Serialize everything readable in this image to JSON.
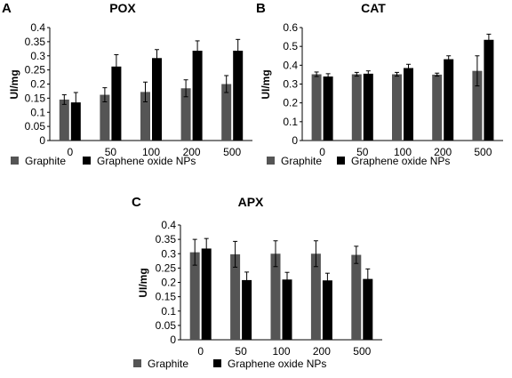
{
  "figure": {
    "colors": {
      "graphite": "#555555",
      "graphene": "#000000",
      "axis": "#000000"
    }
  },
  "chart_data": [
    {
      "panel": "A",
      "type": "bar",
      "title": "POX",
      "ylabel": "UI/mg",
      "xlabel": "",
      "categories": [
        "0",
        "50",
        "100",
        "200",
        "500"
      ],
      "ylim": [
        0,
        0.4
      ],
      "yticks": [
        "0",
        "0.05",
        "0.1",
        "0.15",
        "0.2",
        "0.25",
        "0.3",
        "0.35",
        "0.4"
      ],
      "grid": false,
      "legend_position": "bottom",
      "series": [
        {
          "name": "Graphite",
          "values": [
            0.145,
            0.162,
            0.172,
            0.185,
            0.2
          ],
          "errors": [
            0.017,
            0.025,
            0.035,
            0.03,
            0.03
          ]
        },
        {
          "name": "Graphene oxide NPs",
          "values": [
            0.135,
            0.262,
            0.292,
            0.318,
            0.318
          ],
          "errors": [
            0.035,
            0.042,
            0.03,
            0.035,
            0.04
          ]
        }
      ]
    },
    {
      "panel": "B",
      "type": "bar",
      "title": "CAT",
      "ylabel": "UI/mg",
      "xlabel": "",
      "categories": [
        "0",
        "50",
        "100",
        "200",
        "500"
      ],
      "ylim": [
        0,
        0.6
      ],
      "yticks": [
        "0",
        "0.1",
        "0.2",
        "0.3",
        "0.4",
        "0.5",
        "0.6"
      ],
      "grid": false,
      "legend_position": "bottom",
      "series": [
        {
          "name": "Graphite",
          "values": [
            0.352,
            0.352,
            0.352,
            0.35,
            0.37
          ],
          "errors": [
            0.012,
            0.01,
            0.01,
            0.008,
            0.08
          ]
        },
        {
          "name": "Graphene oxide NPs",
          "values": [
            0.34,
            0.355,
            0.385,
            0.432,
            0.535
          ],
          "errors": [
            0.015,
            0.015,
            0.02,
            0.018,
            0.03
          ]
        }
      ]
    },
    {
      "panel": "C",
      "type": "bar",
      "title": "APX",
      "ylabel": "UI/mg",
      "xlabel": "",
      "categories": [
        "0",
        "50",
        "100",
        "200",
        "500"
      ],
      "ylim": [
        0,
        0.4
      ],
      "yticks": [
        "0",
        "0.05",
        "0.1",
        "0.15",
        "0.2",
        "0.25",
        "0.3",
        "0.35",
        "0.4"
      ],
      "grid": false,
      "legend_position": "bottom",
      "series": [
        {
          "name": "Graphite",
          "values": [
            0.305,
            0.298,
            0.3,
            0.3,
            0.296
          ],
          "errors": [
            0.045,
            0.045,
            0.045,
            0.045,
            0.03
          ]
        },
        {
          "name": "Graphene oxide NPs",
          "values": [
            0.318,
            0.208,
            0.21,
            0.207,
            0.212
          ],
          "errors": [
            0.035,
            0.028,
            0.025,
            0.025,
            0.035
          ]
        }
      ]
    }
  ]
}
